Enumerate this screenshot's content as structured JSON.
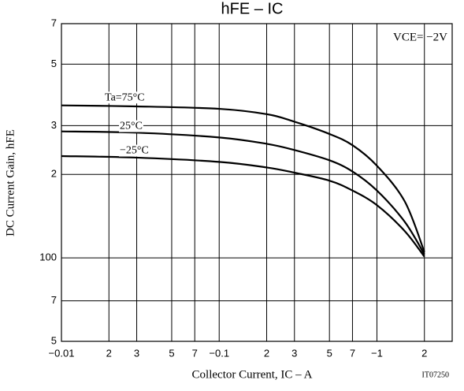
{
  "chart_data": {
    "type": "line",
    "title": "hFE – IC",
    "x_label": "Collector Current, IC – A",
    "y_label": "DC Current Gain, hFE",
    "annotations": [
      "VCE= −2V",
      "IT07250"
    ],
    "x": [
      0.01,
      0.03,
      0.1,
      0.2,
      0.3,
      0.5,
      0.7,
      1,
      1.5,
      2
    ],
    "series": [
      {
        "name": "Ta=75°C",
        "color": "#000000",
        "values": [
          355,
          352,
          345,
          330,
          310,
          280,
          255,
          215,
          160,
          105
        ]
      },
      {
        "name": "25°C",
        "color": "#000000",
        "values": [
          286,
          283,
          272,
          258,
          245,
          225,
          205,
          175,
          135,
          103
        ]
      },
      {
        "name": "−25°C",
        "color": "#000000",
        "values": [
          233,
          230,
          222,
          212,
          203,
          190,
          175,
          155,
          125,
          101
        ]
      }
    ],
    "xlim": [
      0.01,
      3
    ],
    "ylim": [
      50,
      700
    ],
    "log_x": true,
    "log_y": true,
    "grid": true,
    "xticks": [
      {
        "value": 0.01,
        "label": "−0.01"
      },
      {
        "value": 0.02,
        "label": "2"
      },
      {
        "value": 0.03,
        "label": "3"
      },
      {
        "value": 0.05,
        "label": "5"
      },
      {
        "value": 0.07,
        "label": "7"
      },
      {
        "value": 0.1,
        "label": "−0.1"
      },
      {
        "value": 0.2,
        "label": "2"
      },
      {
        "value": 0.3,
        "label": "3"
      },
      {
        "value": 0.5,
        "label": "5"
      },
      {
        "value": 0.7,
        "label": "7"
      },
      {
        "value": 1,
        "label": "−1"
      },
      {
        "value": 2,
        "label": "2"
      }
    ],
    "yticks": [
      {
        "value": 50,
        "label": "5"
      },
      {
        "value": 70,
        "label": "7"
      },
      100,
      {
        "value": 200,
        "label": "2"
      },
      {
        "value": 300,
        "label": "3"
      },
      {
        "value": 500,
        "label": "5"
      },
      {
        "value": 700,
        "label": "7"
      }
    ]
  }
}
